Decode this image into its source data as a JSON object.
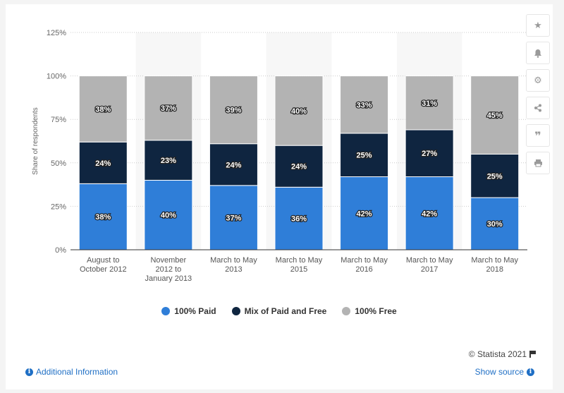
{
  "chart_data": {
    "type": "bar",
    "stacked": true,
    "categories": [
      [
        "August to",
        "October 2012"
      ],
      [
        "November",
        "2012 to",
        "January 2013"
      ],
      [
        "March to May",
        "2013"
      ],
      [
        "March to May",
        "2015"
      ],
      [
        "March to May",
        "2016"
      ],
      [
        "March to May",
        "2017"
      ],
      [
        "March to May",
        "2018"
      ]
    ],
    "series": [
      {
        "name": "100% Paid",
        "color": "#2f7ed8",
        "values": [
          38,
          40,
          37,
          36,
          42,
          42,
          30
        ]
      },
      {
        "name": "Mix of Paid and Free",
        "color": "#0f2540",
        "values": [
          24,
          23,
          24,
          24,
          25,
          27,
          25
        ]
      },
      {
        "name": "100% Free",
        "color": "#b3b3b3",
        "values": [
          38,
          37,
          39,
          40,
          33,
          31,
          45
        ]
      }
    ],
    "ylabel": "Share of respondents",
    "ylim": [
      0,
      125
    ],
    "yticks": [
      0,
      25,
      50,
      75,
      100,
      125
    ],
    "ytick_suffix": "%",
    "value_suffix": "%",
    "grid": true
  },
  "toolbar": {
    "icons": [
      "star-icon",
      "bell-icon",
      "gear-icon",
      "share-icon",
      "quote-icon",
      "print-icon"
    ]
  },
  "footer": {
    "credit": "© Statista 2021",
    "additional_info": "Additional Information",
    "show_source": "Show source"
  }
}
